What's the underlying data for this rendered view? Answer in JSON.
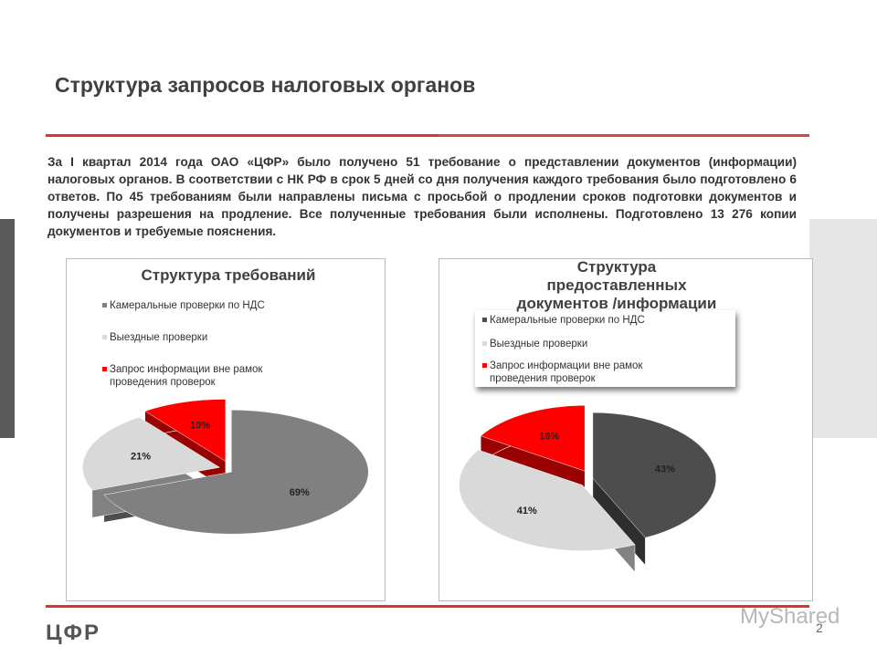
{
  "header": {
    "title": "Структура запросов налоговых органов"
  },
  "body": {
    "paragraph": "За I квартал 2014 года  ОАО «ЦФР» было получено 51 требование о представлении документов (информации) налоговых органов. В соответствии с НК РФ в срок 5 дней со дня получения каждого требования было подготовлено 6 ответов. По 45 требованиям были направлены письма с просьбой о продлении сроков подготовки документов и получены разрешения на продление. Все полученные требования были исполнены. Подготовлено 13 276  копии документов и требуемые пояснения."
  },
  "chart_data": [
    {
      "type": "pie",
      "title": "Структура требований",
      "categories": [
        "Камеральные проверки по НДС",
        "Выездные проверки",
        "Запрос информации вне рамок проведения проверок"
      ],
      "values": [
        69,
        21,
        10
      ],
      "value_labels": [
        "69%",
        "21%",
        "10%"
      ],
      "colors": [
        "#808080",
        "#d9d9d9",
        "#ff0000"
      ]
    },
    {
      "type": "pie",
      "title": "Структура предоставленных документов /информации",
      "categories": [
        "Камеральные проверки по НДС",
        "Выездные проверки",
        "Запрос информации вне рамок проведения проверок"
      ],
      "values": [
        43,
        41,
        16
      ],
      "value_labels": [
        "43%",
        "41%",
        "16%"
      ],
      "colors": [
        "#4d4d4d",
        "#d9d9d9",
        "#ff0000"
      ]
    }
  ],
  "footer": {
    "logo": "ЦФР",
    "page": "2",
    "watermark": "MyShared"
  }
}
